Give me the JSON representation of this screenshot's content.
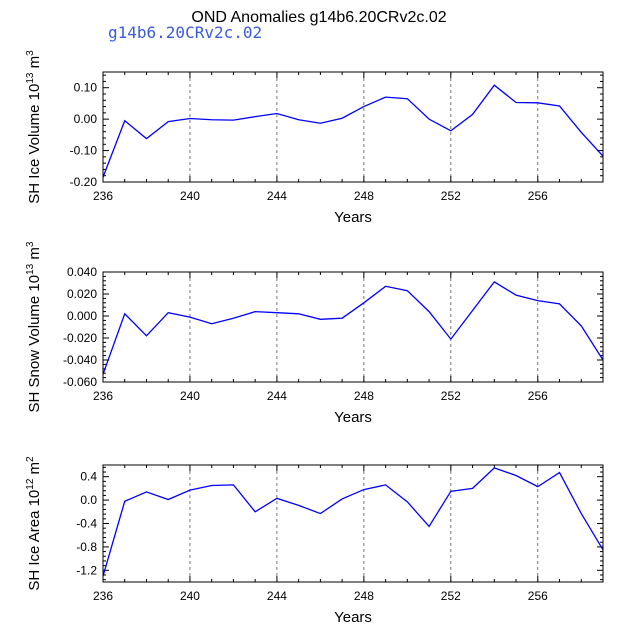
{
  "chart_data": {
    "title": "OND Anomalies g14b6.20CRv2c.02",
    "case_label": "g14b6.20CRv2c.02",
    "line_color": "#0000ff",
    "panels": [
      {
        "id": "ice-volume",
        "type": "line",
        "ylabel": "SH Ice Volume 10",
        "ylabel_exponent": "13",
        "ylabel_unit": " m",
        "ylabel_unit_exponent": "3",
        "xlabel": "Years",
        "xlim": [
          236,
          259
        ],
        "ylim": [
          -0.2,
          0.15
        ],
        "xticks": [
          236,
          240,
          244,
          248,
          252,
          256
        ],
        "xtick_labels": [
          "236",
          "240",
          "244",
          "248",
          "252",
          "256"
        ],
        "yticks": [
          -0.2,
          -0.1,
          0.0,
          0.1
        ],
        "ytick_labels": [
          "-0.20",
          "-0.10",
          "0.00",
          "0.10"
        ],
        "x": [
          236,
          237,
          238,
          239,
          240,
          241,
          242,
          243,
          244,
          245,
          246,
          247,
          248,
          249,
          250,
          251,
          252,
          253,
          254,
          255,
          256,
          257,
          258,
          259
        ],
        "values": [
          -0.185,
          -0.005,
          -0.062,
          -0.008,
          0.002,
          -0.002,
          -0.003,
          0.008,
          0.018,
          -0.002,
          -0.013,
          0.003,
          0.04,
          0.07,
          0.065,
          0.0,
          -0.037,
          0.015,
          0.108,
          0.053,
          0.052,
          0.042,
          -0.042,
          -0.118
        ]
      },
      {
        "id": "snow-volume",
        "type": "line",
        "ylabel": "SH Snow Volume 10",
        "ylabel_exponent": "13",
        "ylabel_unit": " m",
        "ylabel_unit_exponent": "3",
        "xlabel": "Years",
        "xlim": [
          236,
          259
        ],
        "ylim": [
          -0.06,
          0.04
        ],
        "xticks": [
          236,
          240,
          244,
          248,
          252,
          256
        ],
        "xtick_labels": [
          "236",
          "240",
          "244",
          "248",
          "252",
          "256"
        ],
        "yticks": [
          -0.06,
          -0.04,
          -0.02,
          0.0,
          0.02,
          0.04
        ],
        "ytick_labels": [
          "-0.060",
          "-0.040",
          "-0.020",
          "0.000",
          "0.020",
          "0.040"
        ],
        "x": [
          236,
          237,
          238,
          239,
          240,
          241,
          242,
          243,
          244,
          245,
          246,
          247,
          248,
          249,
          250,
          251,
          252,
          253,
          254,
          255,
          256,
          257,
          258,
          259
        ],
        "values": [
          -0.053,
          0.002,
          -0.018,
          0.003,
          -0.001,
          -0.007,
          -0.002,
          0.004,
          0.003,
          0.002,
          -0.003,
          -0.002,
          0.012,
          0.027,
          0.023,
          0.004,
          -0.021,
          0.005,
          0.031,
          0.019,
          0.014,
          0.011,
          -0.009,
          -0.04
        ]
      },
      {
        "id": "ice-area",
        "type": "line",
        "ylabel": "SH Ice Area 10",
        "ylabel_exponent": "12",
        "ylabel_unit": " m",
        "ylabel_unit_exponent": "2",
        "xlabel": "Years",
        "xlim": [
          236,
          259
        ],
        "ylim": [
          -1.4,
          0.6
        ],
        "xticks": [
          236,
          240,
          244,
          248,
          252,
          256
        ],
        "xtick_labels": [
          "236",
          "240",
          "244",
          "248",
          "252",
          "256"
        ],
        "yticks": [
          -1.2,
          -0.8,
          -0.4,
          0.0,
          0.4
        ],
        "ytick_labels": [
          "-1.2",
          "-0.8",
          "-0.4",
          "0.0",
          "0.4"
        ],
        "x": [
          236,
          237,
          238,
          239,
          240,
          241,
          242,
          243,
          244,
          245,
          246,
          247,
          248,
          249,
          250,
          251,
          252,
          253,
          254,
          255,
          256,
          257,
          258,
          259
        ],
        "values": [
          -1.3,
          -0.02,
          0.14,
          0.01,
          0.17,
          0.25,
          0.26,
          -0.2,
          0.03,
          -0.09,
          -0.23,
          0.02,
          0.18,
          0.26,
          -0.03,
          -0.45,
          0.15,
          0.2,
          0.55,
          0.42,
          0.23,
          0.47,
          -0.23,
          -0.85
        ]
      }
    ]
  }
}
